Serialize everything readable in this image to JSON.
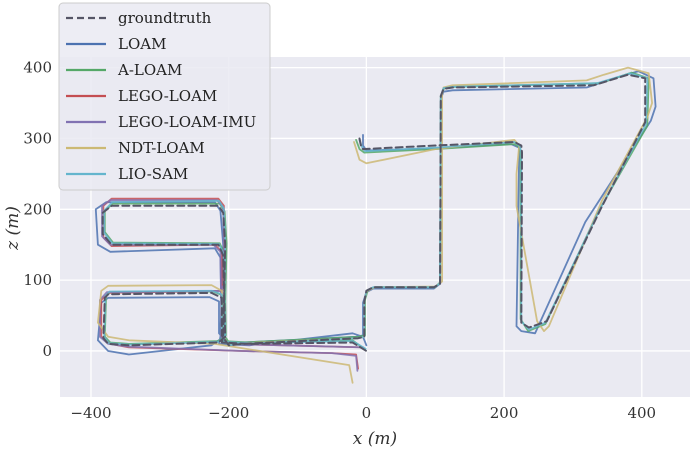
{
  "chart_data": {
    "type": "line",
    "xlabel": "x (m)",
    "ylabel": "z (m)",
    "xlim": [
      -445,
      470
    ],
    "ylim": [
      -65,
      415
    ],
    "xticks": [
      -400,
      -200,
      0,
      200,
      400
    ],
    "yticks": [
      0,
      100,
      200,
      300,
      400
    ],
    "grid": true,
    "legend_position": "top-left",
    "series": [
      {
        "name": "groundtruth",
        "color": "#555566",
        "dashed": true,
        "points": [
          [
            -10,
            300
          ],
          [
            -8,
            290
          ],
          [
            -5,
            285
          ],
          [
            100,
            290
          ],
          [
            215,
            295
          ],
          [
            225,
            290
          ],
          [
            226,
            280
          ],
          [
            225,
            40
          ],
          [
            236,
            33
          ],
          [
            262,
            42
          ],
          [
            340,
            200
          ],
          [
            405,
            323
          ],
          [
            405,
            385
          ],
          [
            380,
            390
          ],
          [
            330,
            375
          ],
          [
            125,
            372
          ],
          [
            112,
            370
          ],
          [
            108,
            360
          ],
          [
            107,
            95
          ],
          [
            98,
            90
          ],
          [
            10,
            90
          ],
          [
            0,
            85
          ],
          [
            -3,
            70
          ],
          [
            -3,
            20
          ],
          [
            -12,
            18
          ],
          [
            -180,
            10
          ],
          [
            -200,
            8
          ],
          [
            -210,
            22
          ],
          [
            -210,
            75
          ],
          [
            -225,
            82
          ],
          [
            -375,
            80
          ],
          [
            -380,
            75
          ],
          [
            -382,
            18
          ],
          [
            -375,
            10
          ],
          [
            -345,
            8
          ],
          [
            -215,
            12
          ],
          [
            -205,
            20
          ],
          [
            -208,
            135
          ],
          [
            -215,
            150
          ],
          [
            -370,
            150
          ],
          [
            -383,
            165
          ],
          [
            -383,
            195
          ],
          [
            -370,
            205
          ],
          [
            -215,
            205
          ],
          [
            -208,
            195
          ],
          [
            -205,
            150
          ],
          [
            -208,
            20
          ],
          [
            -210,
            12
          ],
          [
            -170,
            10
          ],
          [
            -20,
            12
          ],
          [
            0,
            0
          ]
        ]
      },
      {
        "name": "LOAM",
        "color": "#4c72b0",
        "dashed": false,
        "points": [
          [
            -5,
            305
          ],
          [
            -5,
            290
          ],
          [
            0,
            283
          ],
          [
            100,
            286
          ],
          [
            210,
            292
          ],
          [
            222,
            287
          ],
          [
            222,
            280
          ],
          [
            218,
            35
          ],
          [
            225,
            28
          ],
          [
            245,
            25
          ],
          [
            318,
            182
          ],
          [
            413,
            325
          ],
          [
            420,
            345
          ],
          [
            417,
            385
          ],
          [
            395,
            395
          ],
          [
            360,
            385
          ],
          [
            320,
            372
          ],
          [
            125,
            368
          ],
          [
            112,
            366
          ],
          [
            108,
            356
          ],
          [
            107,
            95
          ],
          [
            98,
            88
          ],
          [
            10,
            88
          ],
          [
            0,
            83
          ],
          [
            -5,
            68
          ],
          [
            -5,
            22
          ],
          [
            -15,
            20
          ],
          [
            -180,
            12
          ],
          [
            -200,
            10
          ],
          [
            -214,
            25
          ],
          [
            -214,
            70
          ],
          [
            -228,
            76
          ],
          [
            -375,
            75
          ],
          [
            -385,
            68
          ],
          [
            -390,
            15
          ],
          [
            -375,
            0
          ],
          [
            -345,
            -5
          ],
          [
            -225,
            8
          ],
          [
            -210,
            18
          ],
          [
            -212,
            132
          ],
          [
            -220,
            145
          ],
          [
            -372,
            140
          ],
          [
            -390,
            150
          ],
          [
            -393,
            200
          ],
          [
            -378,
            210
          ],
          [
            -220,
            210
          ],
          [
            -212,
            198
          ],
          [
            -208,
            150
          ],
          [
            -212,
            20
          ],
          [
            -214,
            10
          ],
          [
            -170,
            8
          ],
          [
            -20,
            25
          ],
          [
            -5,
            20
          ],
          [
            0,
            8
          ]
        ]
      },
      {
        "name": "A-LOAM",
        "color": "#55a868",
        "dashed": false,
        "points": [
          [
            -15,
            298
          ],
          [
            -10,
            285
          ],
          [
            -3,
            280
          ],
          [
            100,
            285
          ],
          [
            215,
            292
          ],
          [
            222,
            288
          ],
          [
            224,
            280
          ],
          [
            224,
            45
          ],
          [
            235,
            28
          ],
          [
            260,
            38
          ],
          [
            336,
            195
          ],
          [
            408,
            318
          ],
          [
            410,
            385
          ],
          [
            385,
            393
          ],
          [
            340,
            378
          ],
          [
            128,
            373
          ],
          [
            113,
            371
          ],
          [
            108,
            360
          ],
          [
            107,
            97
          ],
          [
            100,
            90
          ],
          [
            12,
            90
          ],
          [
            2,
            86
          ],
          [
            -2,
            72
          ],
          [
            -2,
            22
          ],
          [
            -12,
            20
          ],
          [
            -180,
            12
          ],
          [
            -198,
            10
          ],
          [
            -208,
            24
          ],
          [
            -208,
            78
          ],
          [
            -222,
            84
          ],
          [
            -372,
            83
          ],
          [
            -378,
            77
          ],
          [
            -380,
            20
          ],
          [
            -372,
            12
          ],
          [
            -345,
            10
          ],
          [
            -215,
            14
          ],
          [
            -204,
            22
          ],
          [
            -206,
            137
          ],
          [
            -213,
            152
          ],
          [
            -368,
            153
          ],
          [
            -380,
            168
          ],
          [
            -380,
            198
          ],
          [
            -368,
            208
          ],
          [
            -213,
            208
          ],
          [
            -206,
            197
          ],
          [
            -203,
            152
          ],
          [
            -206,
            22
          ],
          [
            -208,
            14
          ],
          [
            -170,
            12
          ],
          [
            -20,
            15
          ],
          [
            -2,
            2
          ]
        ]
      },
      {
        "name": "LEGO-LOAM",
        "color": "#c44e52",
        "dashed": false,
        "points": [
          [
            -5,
            5
          ],
          [
            -200,
            10
          ],
          [
            -210,
            20
          ],
          [
            -210,
            140
          ],
          [
            -220,
            150
          ],
          [
            -370,
            148
          ],
          [
            -382,
            160
          ],
          [
            -382,
            205
          ],
          [
            -370,
            215
          ],
          [
            -215,
            215
          ],
          [
            -207,
            205
          ],
          [
            -207,
            95
          ],
          [
            -212,
            85
          ],
          [
            -375,
            82
          ],
          [
            -385,
            72
          ],
          [
            -385,
            20
          ],
          [
            -372,
            10
          ],
          [
            -345,
            5
          ],
          [
            -180,
            0
          ],
          [
            -50,
            -3
          ],
          [
            -15,
            -5
          ],
          [
            -12,
            -25
          ]
        ]
      },
      {
        "name": "LEGO-LOAM-IMU",
        "color": "#8172b2",
        "dashed": false,
        "points": [
          [
            -5,
            5
          ],
          [
            -200,
            10
          ],
          [
            -210,
            20
          ],
          [
            -212,
            140
          ],
          [
            -222,
            150
          ],
          [
            -372,
            150
          ],
          [
            -384,
            162
          ],
          [
            -384,
            205
          ],
          [
            -372,
            213
          ],
          [
            -217,
            213
          ],
          [
            -208,
            203
          ],
          [
            -206,
            95
          ],
          [
            -212,
            85
          ],
          [
            -377,
            83
          ],
          [
            -387,
            72
          ],
          [
            -387,
            20
          ],
          [
            -375,
            10
          ],
          [
            -345,
            6
          ],
          [
            -180,
            0
          ],
          [
            -50,
            -3
          ],
          [
            -15,
            -7
          ],
          [
            -13,
            -28
          ]
        ]
      },
      {
        "name": "NDT-LOAM",
        "color": "#ccb974",
        "dashed": false,
        "points": [
          [
            -18,
            295
          ],
          [
            -10,
            270
          ],
          [
            0,
            265
          ],
          [
            100,
            285
          ],
          [
            215,
            298
          ],
          [
            222,
            290
          ],
          [
            218,
            250
          ],
          [
            218,
            205
          ],
          [
            248,
            42
          ],
          [
            258,
            28
          ],
          [
            265,
            35
          ],
          [
            342,
            212
          ],
          [
            408,
            330
          ],
          [
            415,
            350
          ],
          [
            410,
            392
          ],
          [
            380,
            400
          ],
          [
            345,
            390
          ],
          [
            320,
            382
          ],
          [
            125,
            375
          ],
          [
            112,
            372
          ],
          [
            110,
            362
          ],
          [
            110,
            98
          ],
          [
            100,
            91
          ],
          [
            12,
            90
          ],
          [
            0,
            84
          ],
          [
            -3,
            70
          ],
          [
            -3,
            20
          ],
          [
            -12,
            18
          ],
          [
            -180,
            11
          ],
          [
            -200,
            9
          ],
          [
            -210,
            22
          ],
          [
            -210,
            85
          ],
          [
            -225,
            93
          ],
          [
            -375,
            92
          ],
          [
            -385,
            85
          ],
          [
            -390,
            40
          ],
          [
            -375,
            20
          ],
          [
            -345,
            15
          ],
          [
            -220,
            10
          ],
          [
            -25,
            -20
          ],
          [
            -20,
            -45
          ]
        ]
      },
      {
        "name": "LIO-SAM",
        "color": "#64b5cd",
        "dashed": false,
        "points": [
          [
            -10,
            298
          ],
          [
            -6,
            287
          ],
          [
            -2,
            282
          ],
          [
            100,
            287
          ],
          [
            215,
            295
          ],
          [
            223,
            289
          ],
          [
            225,
            280
          ],
          [
            225,
            42
          ],
          [
            236,
            30
          ],
          [
            260,
            40
          ],
          [
            338,
            198
          ],
          [
            406,
            320
          ],
          [
            408,
            385
          ],
          [
            383,
            392
          ],
          [
            335,
            378
          ],
          [
            126,
            373
          ],
          [
            112,
            371
          ],
          [
            108,
            360
          ],
          [
            107,
            96
          ],
          [
            99,
            90
          ],
          [
            10,
            90
          ],
          [
            0,
            85
          ],
          [
            -3,
            70
          ],
          [
            -3,
            20
          ],
          [
            -12,
            18
          ],
          [
            -180,
            10
          ],
          [
            -200,
            8
          ],
          [
            -210,
            22
          ],
          [
            -210,
            80
          ],
          [
            -224,
            85
          ],
          [
            -373,
            84
          ],
          [
            -379,
            78
          ],
          [
            -381,
            20
          ],
          [
            -374,
            11
          ],
          [
            -345,
            9
          ],
          [
            -215,
            13
          ],
          [
            -205,
            21
          ],
          [
            -207,
            136
          ],
          [
            -214,
            151
          ],
          [
            -369,
            152
          ],
          [
            -381,
            167
          ],
          [
            -381,
            198
          ],
          [
            -369,
            210
          ],
          [
            -214,
            212
          ],
          [
            -207,
            201
          ],
          [
            -205,
            151
          ],
          [
            -207,
            21
          ],
          [
            -209,
            13
          ],
          [
            -170,
            11
          ],
          [
            -20,
            14
          ],
          [
            -1,
            3
          ]
        ]
      }
    ]
  }
}
